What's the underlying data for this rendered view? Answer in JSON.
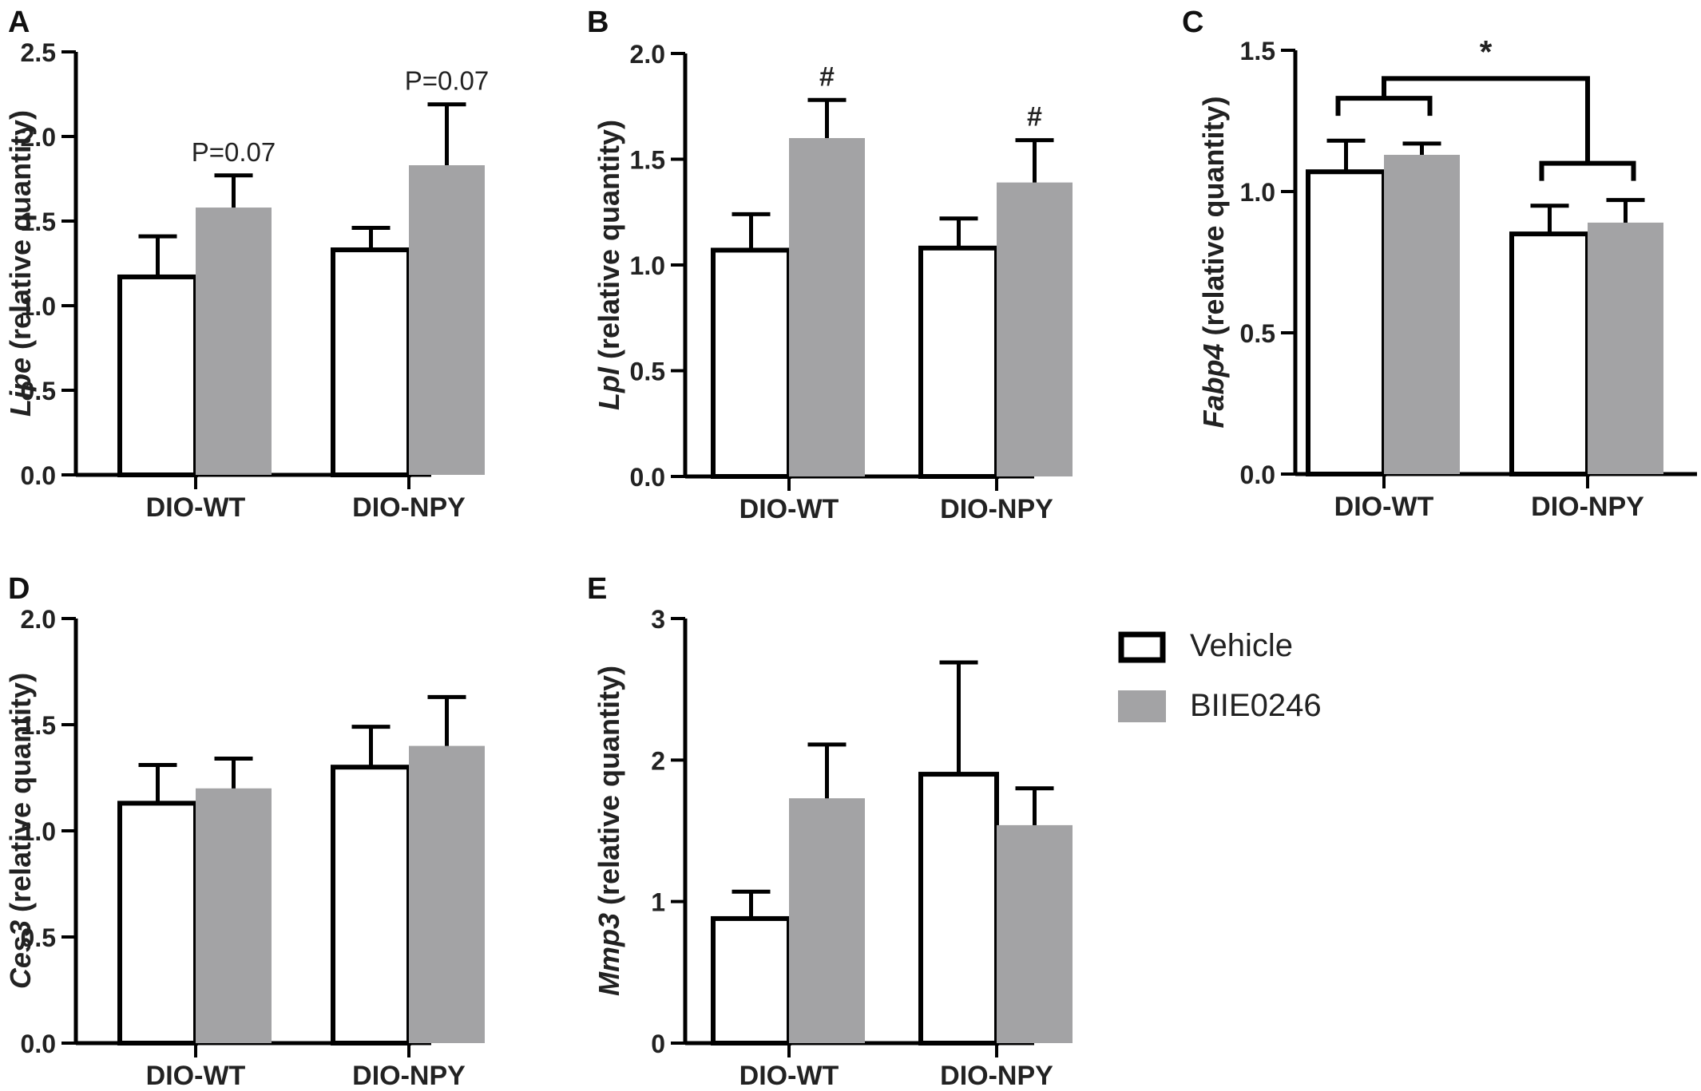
{
  "legend": {
    "vehicle_label": "Vehicle",
    "treatment_label": "BIIE0246",
    "vehicle_color": "#ffffff",
    "treatment_color": "#a3a3a5",
    "outline_color": "#000000"
  },
  "chart_data": [
    {
      "panel": "A",
      "type": "bar",
      "gene": "Lipe",
      "ylabel_suffix": " (relative quantity)",
      "categories": [
        "DIO-WT",
        "DIO-NPY"
      ],
      "series": [
        {
          "name": "Vehicle",
          "values": [
            1.17,
            1.33
          ],
          "errors": [
            0.24,
            0.13
          ]
        },
        {
          "name": "BIIE0246",
          "values": [
            1.58,
            1.83
          ],
          "errors": [
            0.19,
            0.36
          ]
        }
      ],
      "ylim": [
        0,
        2.5
      ],
      "yticks": [
        "0.0",
        "0.5",
        "1.0",
        "1.5",
        "2.0",
        "2.5"
      ],
      "annotations": [
        {
          "category": 0,
          "series": 1,
          "text": "P=0.07"
        },
        {
          "category": 1,
          "series": 1,
          "text": "P=0.07"
        }
      ]
    },
    {
      "panel": "B",
      "type": "bar",
      "gene": "Lpl",
      "ylabel_suffix": " (relative quantity)",
      "categories": [
        "DIO-WT",
        "DIO-NPY"
      ],
      "series": [
        {
          "name": "Vehicle",
          "values": [
            1.07,
            1.08
          ],
          "errors": [
            0.17,
            0.14
          ]
        },
        {
          "name": "BIIE0246",
          "values": [
            1.6,
            1.39
          ],
          "errors": [
            0.18,
            0.2
          ]
        }
      ],
      "ylim": [
        0,
        2.0
      ],
      "yticks": [
        "0.0",
        "0.5",
        "1.0",
        "1.5",
        "2.0"
      ],
      "annotations": [
        {
          "category": 0,
          "series": 1,
          "text": "#"
        },
        {
          "category": 1,
          "series": 1,
          "text": "#"
        }
      ]
    },
    {
      "panel": "C",
      "type": "bar",
      "gene": "Fabp4",
      "ylabel_suffix": " (relative quantity)",
      "categories": [
        "DIO-WT",
        "DIO-NPY"
      ],
      "series": [
        {
          "name": "Vehicle",
          "values": [
            1.07,
            0.85
          ],
          "errors": [
            0.11,
            0.1
          ]
        },
        {
          "name": "BIIE0246",
          "values": [
            1.13,
            0.89
          ],
          "errors": [
            0.04,
            0.08
          ]
        }
      ],
      "ylim": [
        0,
        1.5
      ],
      "yticks": [
        "0.0",
        "0.5",
        "1.0",
        "1.5"
      ],
      "annotations": [],
      "bracket": {
        "text": "*"
      }
    },
    {
      "panel": "D",
      "type": "bar",
      "gene": "Ces3",
      "ylabel_suffix": " (relative quantity)",
      "categories": [
        "DIO-WT",
        "DIO-NPY"
      ],
      "series": [
        {
          "name": "Vehicle",
          "values": [
            1.13,
            1.3
          ],
          "errors": [
            0.18,
            0.19
          ]
        },
        {
          "name": "BIIE0246",
          "values": [
            1.2,
            1.4
          ],
          "errors": [
            0.14,
            0.23
          ]
        }
      ],
      "ylim": [
        0,
        2.0
      ],
      "yticks": [
        "0.0",
        "0.5",
        "1.0",
        "1.5",
        "2.0"
      ],
      "annotations": []
    },
    {
      "panel": "E",
      "type": "bar",
      "gene": "Mmp3",
      "ylabel_suffix": " (relative quantity)",
      "categories": [
        "DIO-WT",
        "DIO-NPY"
      ],
      "series": [
        {
          "name": "Vehicle",
          "values": [
            0.88,
            1.9
          ],
          "errors": [
            0.19,
            0.79
          ]
        },
        {
          "name": "BIIE0246",
          "values": [
            1.73,
            1.54
          ],
          "errors": [
            0.38,
            0.26
          ]
        }
      ],
      "ylim": [
        0,
        3
      ],
      "yticks": [
        "0",
        "1",
        "2",
        "3"
      ],
      "annotations": []
    }
  ]
}
